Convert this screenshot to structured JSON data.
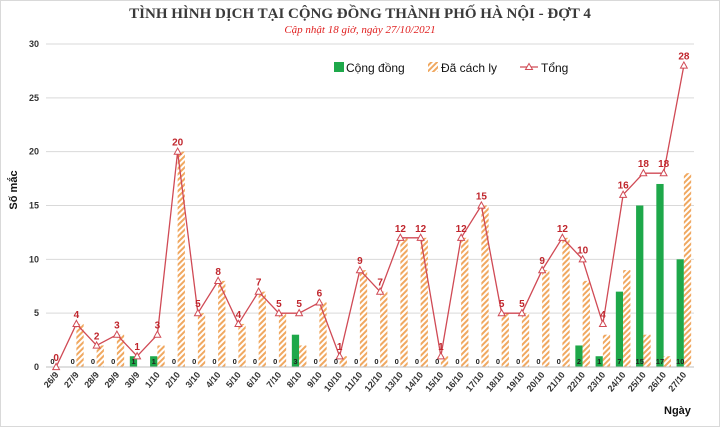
{
  "title": "TÌNH HÌNH DỊCH TẠI CỘNG ĐỒNG THÀNH PHỐ HÀ NỘI - ĐỢT 4",
  "subtitle": "Cập nhật 18 giờ, ngày 27/10/2021",
  "colors": {
    "community": "#1ea84a",
    "isolated_stripe": "#f0a860",
    "total_line": "#d04a55",
    "total_label": "#c0262d",
    "grid": "#d9d9d9"
  },
  "chart_data": {
    "type": "bar",
    "title": "TÌNH HÌNH DỊCH TẠI CỘNG ĐỒNG THÀNH PHỐ HÀ NỘI - ĐỢT 4",
    "subtitle": "Cập nhật 18 giờ, ngày 27/10/2021",
    "xlabel": "Ngày",
    "ylabel": "Số mắc",
    "ylim": [
      0,
      30
    ],
    "yticks": [
      0,
      5,
      10,
      15,
      20,
      25,
      30
    ],
    "grid": true,
    "legend_position": "top-right",
    "categories": [
      "26/9",
      "27/9",
      "28/9",
      "29/9",
      "30/9",
      "1/10",
      "2/10",
      "3/10",
      "4/10",
      "5/10",
      "6/10",
      "7/10",
      "8/10",
      "9/10",
      "10/10",
      "11/10",
      "12/10",
      "13/10",
      "14/10",
      "15/10",
      "16/10",
      "17/10",
      "18/10",
      "19/10",
      "20/10",
      "21/10",
      "22/10",
      "23/10",
      "24/10",
      "25/10",
      "26/10",
      "27/10"
    ],
    "series": [
      {
        "name": "Cộng đồng",
        "kind": "bar",
        "values": [
          0,
          0,
          0,
          0,
          1,
          1,
          0,
          0,
          0,
          0,
          0,
          0,
          3,
          0,
          0,
          0,
          0,
          0,
          0,
          0,
          0,
          0,
          0,
          0,
          0,
          0,
          2,
          1,
          7,
          15,
          17,
          10
        ]
      },
      {
        "name": "Đã cách ly",
        "kind": "bar",
        "values": [
          0,
          4,
          2,
          3,
          0,
          2,
          20,
          5,
          8,
          4,
          7,
          5,
          2,
          6,
          1,
          9,
          7,
          12,
          12,
          1,
          12,
          15,
          5,
          5,
          9,
          12,
          8,
          3,
          9,
          3,
          1,
          18
        ]
      },
      {
        "name": "Tổng",
        "kind": "line",
        "values": [
          0,
          4,
          2,
          3,
          1,
          3,
          20,
          5,
          8,
          4,
          7,
          5,
          5,
          6,
          1,
          9,
          7,
          12,
          12,
          1,
          12,
          15,
          5,
          5,
          9,
          12,
          10,
          4,
          16,
          18,
          18,
          28
        ]
      }
    ]
  }
}
